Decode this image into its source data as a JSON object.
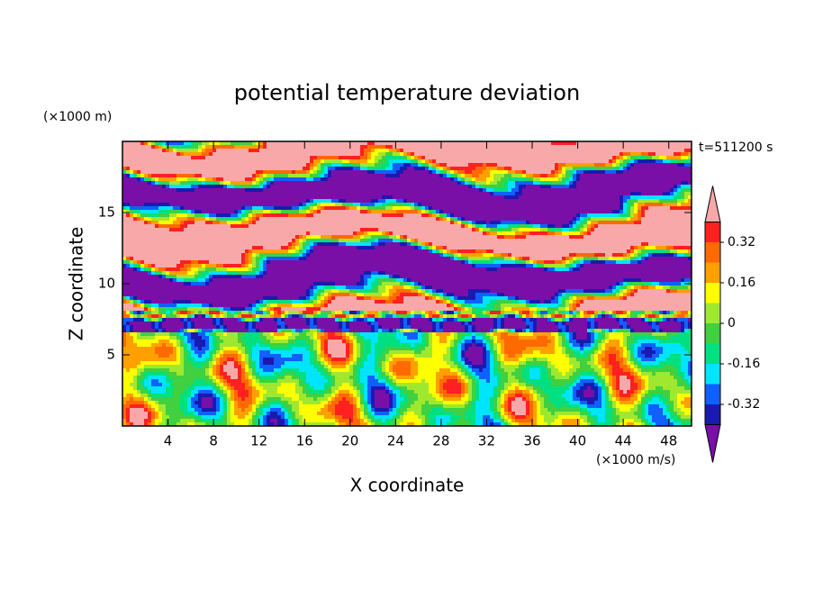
{
  "chart_data": {
    "type": "contour",
    "title": "potential temperature deviation",
    "subtitle": "t=511200 s",
    "x_label": "X coordinate",
    "y_label": "Z coordinate",
    "x_unit": "(×1000 m/s)",
    "y_unit": "(×1000 m)",
    "xlim": [
      0,
      50
    ],
    "xticks": [
      4,
      8,
      12,
      16,
      20,
      24,
      28,
      32,
      36,
      40,
      44,
      48
    ],
    "ylim": [
      0,
      20
    ],
    "yticks": [
      5,
      10,
      15
    ],
    "levels": [
      -0.4,
      -0.32,
      -0.24,
      -0.16,
      -0.08,
      0,
      0.08,
      0.16,
      0.24,
      0.32,
      0.4
    ],
    "colors": [
      "#7a0fa8",
      "#1a1ab0",
      "#1060ff",
      "#00e5ff",
      "#00e080",
      "#40d040",
      "#a0e830",
      "#ffff00",
      "#ffa000",
      "#ff6a00",
      "#ff2020",
      "#f8a8a8"
    ],
    "cticks": [
      -0.32,
      -0.16,
      0,
      0.16,
      0.32
    ]
  }
}
